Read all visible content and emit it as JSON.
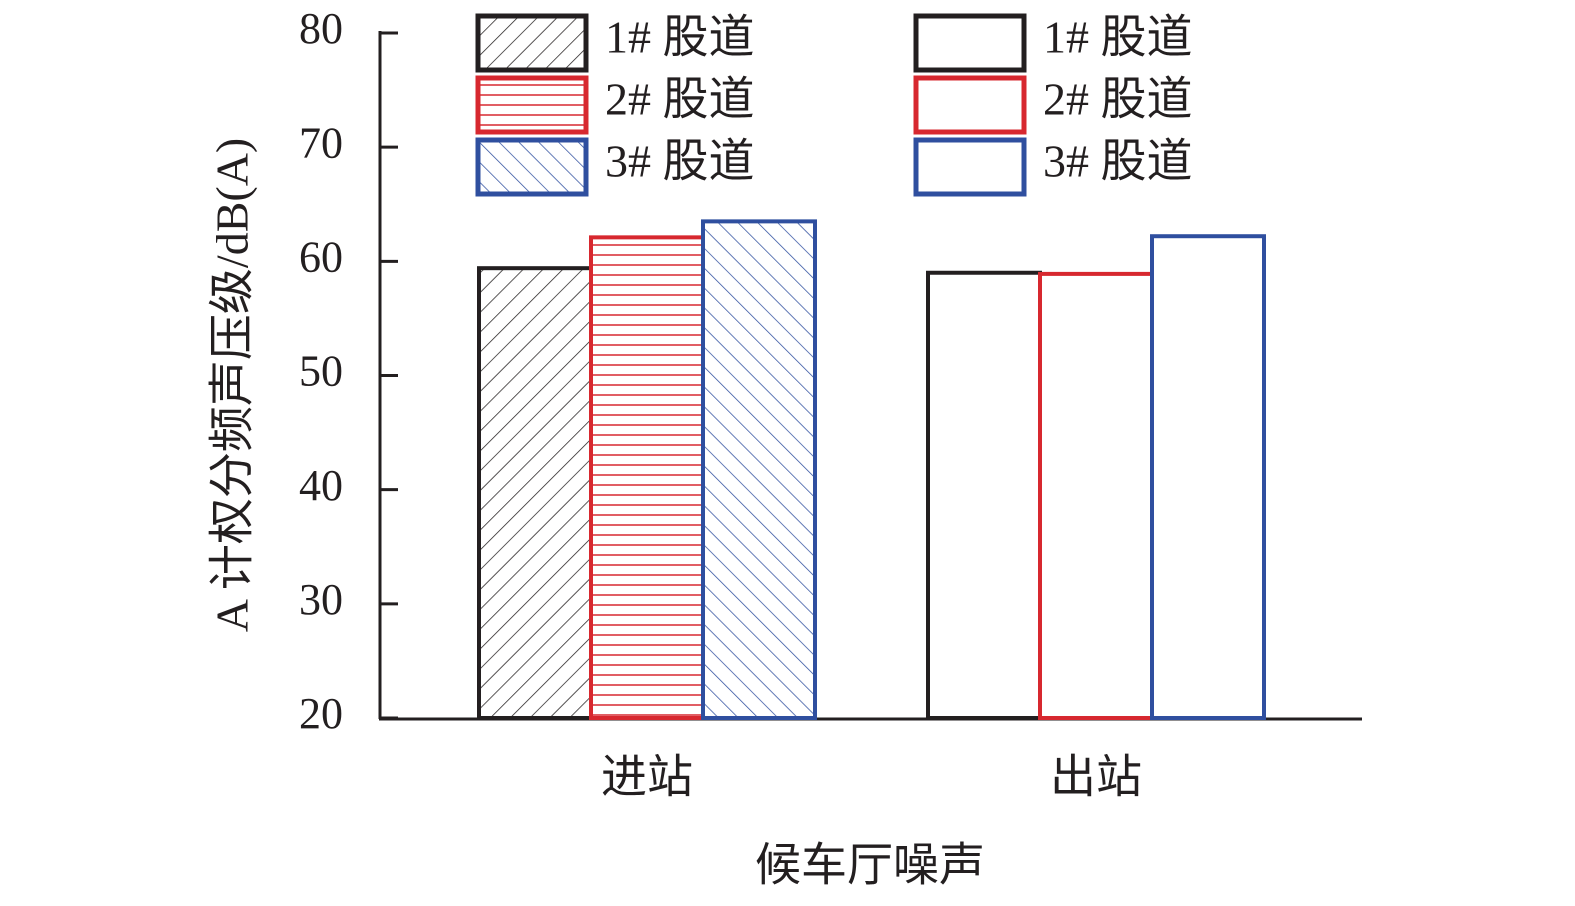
{
  "chart_data": {
    "type": "bar",
    "ylabel": "A 计权分频声压级/dB(A)",
    "xlabel": "候车厅噪声",
    "categories": [
      "进站",
      "出站"
    ],
    "ylim": [
      20,
      80
    ],
    "yticks": [
      20,
      30,
      40,
      50,
      60,
      70,
      80
    ],
    "series": [
      {
        "name": "1# 股道",
        "color": "#231f20",
        "hatch": "diagonal",
        "values": [
          59.4,
          null
        ]
      },
      {
        "name": "2# 股道",
        "color": "#d7282f",
        "hatch": "horizontal",
        "values": [
          62.1,
          null
        ]
      },
      {
        "name": "3# 股道",
        "color": "#2f4f9f",
        "hatch": "backdiagonal",
        "values": [
          63.5,
          null
        ]
      },
      {
        "name": "1# 股道",
        "color": "#231f20",
        "hatch": "none",
        "values": [
          null,
          59.0
        ]
      },
      {
        "name": "2# 股道",
        "color": "#d7282f",
        "hatch": "none",
        "values": [
          null,
          58.9
        ]
      },
      {
        "name": "3# 股道",
        "color": "#2f4f9f",
        "hatch": "none",
        "values": [
          null,
          62.2
        ]
      }
    ]
  }
}
